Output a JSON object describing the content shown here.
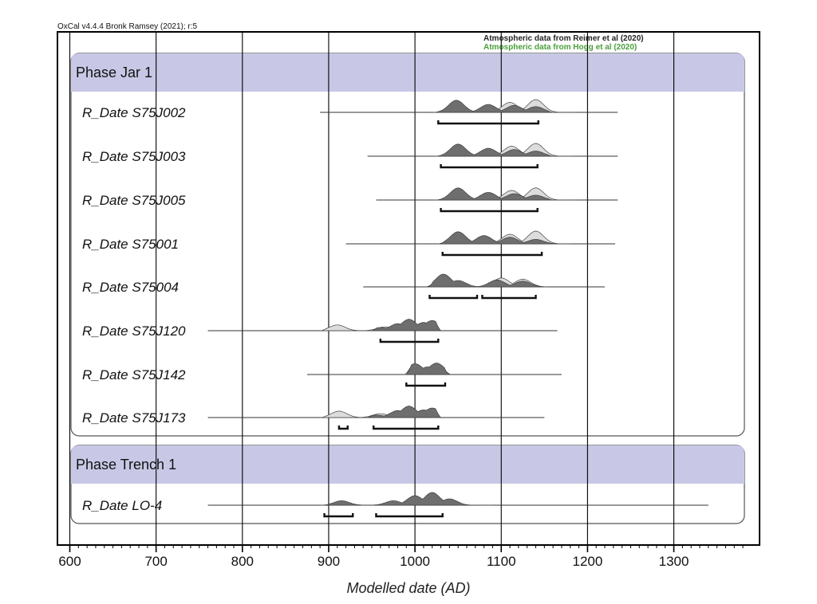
{
  "header": {
    "software": "OxCal v4.4.4 Bronk Ramsey (2021); r:5",
    "atmos_primary": "Atmospheric data from Reimer et al (2020)",
    "atmos_secondary": "Atmospheric data from Hogg et al (2020)"
  },
  "colors": {
    "phase_fill": "#c8c8e6",
    "posterior": "#6e6e6e",
    "likelihood": "#dcdcdc",
    "atmos_secondary": "#4aa03a",
    "frame": "#000000",
    "grid": "#000000"
  },
  "chart_data": {
    "type": "oxcal-multiplot",
    "xlabel": "Modelled date (AD)",
    "xlim": [
      585,
      1385
    ],
    "ticks": [
      600,
      700,
      800,
      900,
      1000,
      1100,
      1200,
      1300
    ],
    "grid": true,
    "phases": [
      {
        "label": "Phase Jar 1",
        "dates": [
          {
            "label": "R_Date S75J002",
            "range": [
              890,
              1235
            ],
            "hpd": [
              [
                1027,
                1143
              ]
            ],
            "post_peaks": [
              [
                1048,
                0.95
              ],
              [
                1085,
                0.62
              ],
              [
                1115,
                0.55
              ],
              [
                1140,
                0.45
              ]
            ],
            "post_extent": [
              1022,
              1160
            ],
            "lik_peaks": [
              [
                1048,
                0.6
              ],
              [
                1110,
                0.78
              ],
              [
                1140,
                1.0
              ]
            ],
            "lik_extent": [
              1020,
              1185
            ]
          },
          {
            "label": "R_Date S75J003",
            "range": [
              945,
              1235
            ],
            "hpd": [
              [
                1030,
                1142
              ]
            ],
            "post_peaks": [
              [
                1050,
                0.95
              ],
              [
                1085,
                0.62
              ],
              [
                1115,
                0.52
              ],
              [
                1140,
                0.4
              ]
            ],
            "post_extent": [
              1025,
              1160
            ],
            "lik_peaks": [
              [
                1050,
                0.6
              ],
              [
                1112,
                0.78
              ],
              [
                1140,
                1.0
              ]
            ],
            "lik_extent": [
              1022,
              1185
            ]
          },
          {
            "label": "R_Date S75J005",
            "range": [
              955,
              1235
            ],
            "hpd": [
              [
                1030,
                1142
              ]
            ],
            "post_peaks": [
              [
                1050,
                0.95
              ],
              [
                1085,
                0.6
              ],
              [
                1115,
                0.5
              ],
              [
                1140,
                0.38
              ]
            ],
            "post_extent": [
              1025,
              1160
            ],
            "lik_peaks": [
              [
                1050,
                0.6
              ],
              [
                1112,
                0.75
              ],
              [
                1140,
                0.95
              ]
            ],
            "lik_extent": [
              1022,
              1185
            ]
          },
          {
            "label": "R_Date S75001",
            "range": [
              920,
              1232
            ],
            "hpd": [
              [
                1032,
                1147
              ]
            ],
            "post_peaks": [
              [
                1050,
                0.95
              ],
              [
                1080,
                0.65
              ],
              [
                1110,
                0.52
              ],
              [
                1140,
                0.35
              ]
            ],
            "post_extent": [
              1028,
              1165
            ],
            "lik_peaks": [
              [
                1050,
                0.6
              ],
              [
                1110,
                0.75
              ],
              [
                1140,
                1.0
              ]
            ],
            "lik_extent": [
              1025,
              1180
            ]
          },
          {
            "label": "R_Date S75004",
            "range": [
              940,
              1220
            ],
            "hpd": [
              [
                1017,
                1072
              ],
              [
                1078,
                1140
              ]
            ],
            "post_peaks": [
              [
                1033,
                1.0
              ],
              [
                1050,
                0.5
              ],
              [
                1095,
                0.55
              ],
              [
                1125,
                0.45
              ]
            ],
            "post_extent": [
              1015,
              1150
            ],
            "lik_peaks": [
              [
                1033,
                0.55
              ],
              [
                1100,
                0.7
              ],
              [
                1125,
                0.6
              ]
            ],
            "lik_extent": [
              1012,
              1155
            ]
          }
        ]
      },
      {
        "label": "",
        "dates": [
          {
            "label": "R_Date S75J120",
            "range": [
              760,
              1165
            ],
            "hpd": [
              [
                960,
                1027
              ]
            ],
            "post_peaks": [
              [
                960,
                0.25
              ],
              [
                980,
                0.55
              ],
              [
                993,
                0.9
              ],
              [
                1010,
                0.65
              ],
              [
                1020,
                0.8
              ]
            ],
            "post_extent": [
              950,
              1030
            ],
            "lik_peaks": [
              [
                910,
                0.45
              ],
              [
                965,
                0.3
              ],
              [
                990,
                0.6
              ],
              [
                1015,
                0.6
              ]
            ],
            "lik_extent": [
              890,
              1030
            ]
          },
          {
            "label": "R_Date S75J142",
            "range": [
              875,
              1170
            ],
            "hpd": [
              [
                990,
                1035
              ]
            ],
            "post_peaks": [
              [
                1000,
                0.85
              ],
              [
                1015,
                0.6
              ],
              [
                1025,
                0.9
              ]
            ],
            "post_extent": [
              990,
              1040
            ],
            "lik_peaks": [
              [
                1000,
                0.6
              ],
              [
                1025,
                0.55
              ]
            ],
            "lik_extent": [
              988,
              1042
            ]
          },
          {
            "label": "R_Date S75J173",
            "range": [
              760,
              1150
            ],
            "hpd": [
              [
                912,
                922
              ],
              [
                952,
                1027
              ]
            ],
            "post_peaks": [
              [
                955,
                0.2
              ],
              [
                980,
                0.55
              ],
              [
                993,
                0.9
              ],
              [
                1010,
                0.6
              ],
              [
                1020,
                0.75
              ]
            ],
            "post_extent": [
              945,
              1030
            ],
            "lik_peaks": [
              [
                912,
                0.5
              ],
              [
                960,
                0.3
              ],
              [
                990,
                0.55
              ],
              [
                1015,
                0.55
              ]
            ],
            "lik_extent": [
              890,
              1030
            ]
          }
        ]
      },
      {
        "label": "Phase Trench 1",
        "dates": [
          {
            "label": "R_Date LO-4",
            "range": [
              760,
              1340
            ],
            "hpd": [
              [
                895,
                928
              ],
              [
                955,
                1032
              ]
            ],
            "post_peaks": [
              [
                915,
                0.35
              ],
              [
                975,
                0.35
              ],
              [
                1000,
                0.75
              ],
              [
                1020,
                1.0
              ],
              [
                1040,
                0.5
              ]
            ],
            "post_extent": [
              895,
              1075
            ],
            "lik_peaks": [
              [
                915,
                0.25
              ],
              [
                1000,
                0.5
              ],
              [
                1025,
                0.55
              ]
            ],
            "lik_extent": [
              890,
              1090
            ]
          }
        ]
      }
    ]
  }
}
